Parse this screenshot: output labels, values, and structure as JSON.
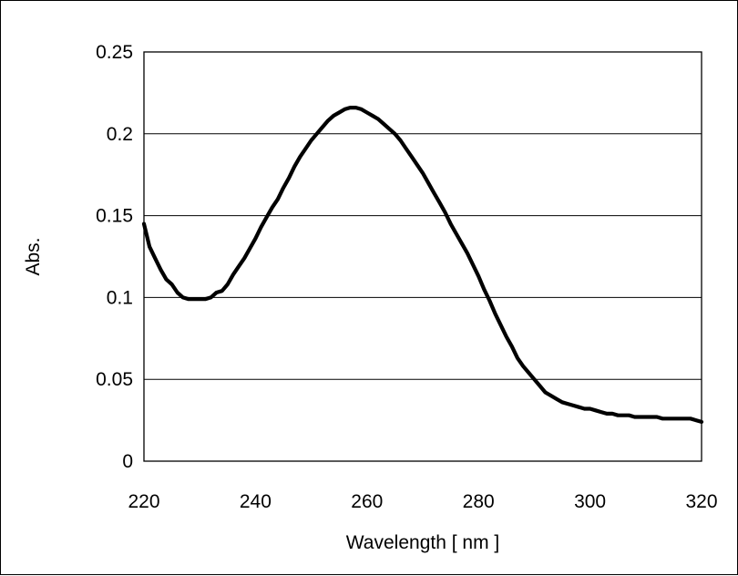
{
  "chart_data": {
    "type": "line",
    "title": "",
    "xlabel": "Wavelength [ nm ]",
    "ylabel": "Abs.",
    "xlim": [
      220,
      320
    ],
    "ylim": [
      0,
      0.25
    ],
    "x_ticks": [
      "220",
      "240",
      "260",
      "280",
      "300",
      "320"
    ],
    "y_ticks": [
      "0",
      "0.05",
      "0.1",
      "0.15",
      "0.2",
      "0.25"
    ],
    "grid": "horizontal",
    "legend": "none",
    "series": [
      {
        "x": [
          220,
          221,
          222,
          223,
          224,
          225,
          226,
          227,
          228,
          229,
          230,
          231,
          232,
          233,
          234,
          235,
          236,
          237,
          238,
          239,
          240,
          241,
          242,
          243,
          244,
          245,
          246,
          247,
          248,
          249,
          250,
          251,
          252,
          253,
          254,
          255,
          256,
          257,
          258,
          259,
          260,
          261,
          262,
          263,
          264,
          265,
          266,
          267,
          268,
          269,
          270,
          271,
          272,
          273,
          274,
          275,
          276,
          277,
          278,
          279,
          280,
          281,
          282,
          283,
          284,
          285,
          286,
          287,
          288,
          289,
          290,
          291,
          292,
          293,
          294,
          295,
          296,
          297,
          298,
          299,
          300,
          301,
          302,
          303,
          304,
          305,
          306,
          307,
          308,
          309,
          310,
          311,
          312,
          313,
          314,
          315,
          316,
          317,
          318,
          319,
          320
        ],
        "values": [
          0.145,
          0.131,
          0.124,
          0.117,
          0.111,
          0.108,
          0.103,
          0.1,
          0.099,
          0.099,
          0.099,
          0.099,
          0.1,
          0.103,
          0.104,
          0.108,
          0.114,
          0.119,
          0.124,
          0.13,
          0.136,
          0.143,
          0.149,
          0.155,
          0.16,
          0.167,
          0.173,
          0.18,
          0.186,
          0.191,
          0.196,
          0.2,
          0.204,
          0.208,
          0.211,
          0.213,
          0.215,
          0.216,
          0.216,
          0.215,
          0.213,
          0.211,
          0.209,
          0.206,
          0.203,
          0.2,
          0.196,
          0.191,
          0.186,
          0.181,
          0.176,
          0.17,
          0.164,
          0.158,
          0.152,
          0.145,
          0.139,
          0.133,
          0.127,
          0.12,
          0.113,
          0.105,
          0.098,
          0.09,
          0.083,
          0.076,
          0.07,
          0.063,
          0.058,
          0.054,
          0.05,
          0.046,
          0.042,
          0.04,
          0.038,
          0.036,
          0.035,
          0.034,
          0.033,
          0.032,
          0.032,
          0.031,
          0.03,
          0.029,
          0.029,
          0.028,
          0.028,
          0.028,
          0.027,
          0.027,
          0.027,
          0.027,
          0.027,
          0.026,
          0.026,
          0.026,
          0.026,
          0.026,
          0.026,
          0.025,
          0.024
        ],
        "color": "#000000"
      }
    ]
  }
}
